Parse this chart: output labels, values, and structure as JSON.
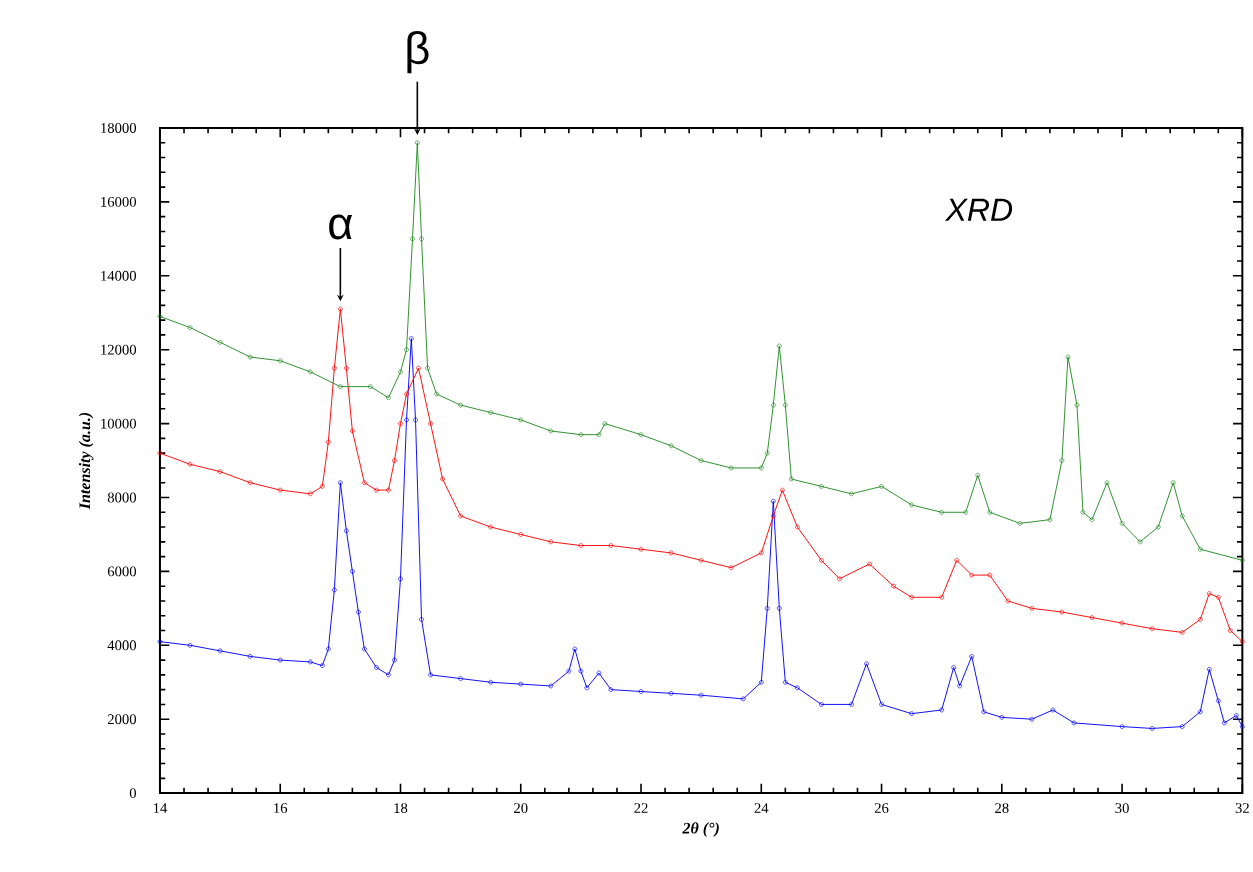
{
  "chart_data": {
    "type": "line",
    "xlabel": "2θ (°)",
    "ylabel": "Intensity (a.u.)",
    "xlim": [
      14,
      32
    ],
    "xticks": [
      14,
      16,
      18,
      20,
      22,
      24,
      26,
      28,
      30,
      32
    ],
    "ylim": [
      0,
      18000
    ],
    "yticks": [
      0,
      2000,
      4000,
      6000,
      8000,
      10000,
      12000,
      14000,
      16000,
      18000
    ],
    "grid": false,
    "marker": "circle",
    "line_style": "solid",
    "annotations": [
      {
        "text": "α",
        "x": 17.0,
        "y": 13100
      },
      {
        "text": "β",
        "x": 18.28,
        "y": 17600
      },
      "XRD"
    ],
    "series": [
      {
        "color": "#0000ff",
        "x": [
          14,
          14.5,
          15,
          15.5,
          16,
          16.5,
          16.7,
          16.8,
          16.9,
          17.0,
          17.1,
          17.2,
          17.3,
          17.4,
          17.6,
          17.8,
          17.9,
          18.0,
          18.1,
          18.18,
          18.25,
          18.35,
          18.5,
          19,
          19.5,
          20,
          20.5,
          20.8,
          20.9,
          21.0,
          21.1,
          21.3,
          21.5,
          22,
          22.5,
          23,
          23.7,
          24.0,
          24.1,
          24.2,
          24.3,
          24.4,
          24.6,
          25,
          25.5,
          25.75,
          26,
          26.5,
          27,
          27.2,
          27.3,
          27.5,
          27.7,
          28,
          28.5,
          28.85,
          29.2,
          30,
          30.5,
          31,
          31.3,
          31.45,
          31.6,
          31.7,
          31.9,
          32
        ],
        "values": [
          4100,
          4000,
          3850,
          3700,
          3600,
          3550,
          3450,
          3900,
          5500,
          8400,
          7100,
          6000,
          4900,
          3900,
          3400,
          3200,
          3600,
          5800,
          10100,
          12300,
          10100,
          4700,
          3200,
          3100,
          3000,
          2950,
          2900,
          3300,
          3900,
          3300,
          2850,
          3250,
          2800,
          2750,
          2700,
          2650,
          2550,
          3000,
          5000,
          7900,
          5000,
          3000,
          2850,
          2400,
          2400,
          3500,
          2400,
          2150,
          2250,
          3400,
          2900,
          3700,
          2200,
          2050,
          2000,
          2250,
          1900,
          1800,
          1750,
          1800,
          2200,
          3350,
          2500,
          1900,
          2100,
          1800
        ]
      },
      {
        "color": "#ff0000",
        "x": [
          14,
          14.5,
          15,
          15.5,
          16,
          16.5,
          16.7,
          16.8,
          16.9,
          17.0,
          17.1,
          17.2,
          17.4,
          17.6,
          17.8,
          17.9,
          18.0,
          18.1,
          18.3,
          18.5,
          18.7,
          19,
          19.5,
          20,
          20.5,
          21,
          21.5,
          22,
          22.5,
          23,
          23.5,
          24,
          24.2,
          24.35,
          24.6,
          25,
          25.3,
          25.8,
          26.2,
          26.5,
          27,
          27.25,
          27.5,
          27.8,
          28.1,
          28.5,
          29,
          29.5,
          30,
          30.5,
          31,
          31.3,
          31.45,
          31.6,
          31.8,
          32
        ],
        "values": [
          9200,
          8900,
          8700,
          8400,
          8200,
          8100,
          8300,
          9500,
          11500,
          13100,
          11500,
          9800,
          8400,
          8200,
          8200,
          9000,
          10000,
          10800,
          11500,
          10000,
          8500,
          7500,
          7200,
          7000,
          6800,
          6700,
          6700,
          6600,
          6500,
          6300,
          6100,
          6500,
          7500,
          8200,
          7200,
          6300,
          5800,
          6200,
          5600,
          5300,
          5300,
          6300,
          5900,
          5900,
          5200,
          5000,
          4900,
          4750,
          4600,
          4450,
          4350,
          4700,
          5400,
          5300,
          4400,
          4100
        ]
      },
      {
        "color": "#228b22",
        "x": [
          14,
          14.5,
          15,
          15.5,
          16,
          16.5,
          17,
          17.5,
          17.8,
          18.0,
          18.1,
          18.2,
          18.28,
          18.35,
          18.45,
          18.6,
          19,
          19.5,
          20,
          20.5,
          21,
          21.3,
          21.4,
          22,
          22.5,
          23,
          23.5,
          24,
          24.1,
          24.2,
          24.3,
          24.4,
          24.5,
          25,
          25.5,
          26,
          26.5,
          27,
          27.4,
          27.6,
          27.8,
          28.3,
          28.8,
          29,
          29.1,
          29.25,
          29.35,
          29.5,
          29.75,
          30,
          30.3,
          30.6,
          30.85,
          31.0,
          31.3,
          32
        ],
        "values": [
          12900,
          12600,
          12200,
          11800,
          11700,
          11400,
          11000,
          11000,
          10700,
          11400,
          12000,
          15000,
          17600,
          15000,
          11500,
          10800,
          10500,
          10300,
          10100,
          9800,
          9700,
          9700,
          10000,
          9700,
          9400,
          9000,
          8800,
          8800,
          9200,
          10500,
          12100,
          10500,
          8500,
          8300,
          8100,
          8300,
          7800,
          7600,
          7600,
          8600,
          7600,
          7300,
          7400,
          9000,
          11800,
          10500,
          7600,
          7400,
          8400,
          7300,
          6800,
          7200,
          8400,
          7500,
          6600,
          6300
        ]
      }
    ]
  }
}
